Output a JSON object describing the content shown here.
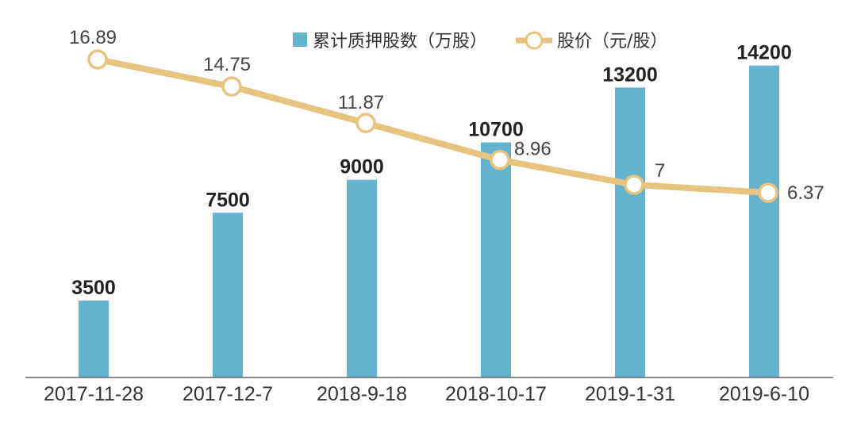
{
  "chart_data": {
    "type": "bar+line",
    "categories": [
      "2017-11-28",
      "2017-12-7",
      "2018-9-18",
      "2018-10-17",
      "2019-1-31",
      "2019-6-10"
    ],
    "series": [
      {
        "name": "累计质押股数（万股）",
        "type": "bar",
        "values": [
          3500,
          7500,
          9000,
          10700,
          13200,
          14200
        ],
        "labels": [
          "3500",
          "7500",
          "9000",
          "10700",
          "13200",
          "14200"
        ],
        "color": "#65b3cf"
      },
      {
        "name": "股价（元/股）",
        "type": "line",
        "values": [
          16.89,
          14.75,
          11.87,
          8.96,
          7,
          6.37
        ],
        "labels": [
          "16.89",
          "14.75",
          "11.87",
          "8.96",
          "7",
          "6.37"
        ],
        "color": "#e7c47f"
      }
    ],
    "legend_position": "top-center",
    "grid": false
  }
}
